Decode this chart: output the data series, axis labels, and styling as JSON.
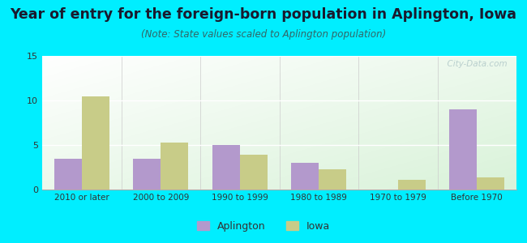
{
  "title": "Year of entry for the foreign-born population in Aplington, Iowa",
  "subtitle": "(Note: State values scaled to Aplington population)",
  "categories": [
    "2010 or later",
    "2000 to 2009",
    "1990 to 1999",
    "1980 to 1989",
    "1970 to 1979",
    "Before 1970"
  ],
  "aplington_values": [
    3.5,
    3.5,
    5.0,
    3.0,
    0.0,
    9.0
  ],
  "iowa_values": [
    10.5,
    5.3,
    3.9,
    2.3,
    1.1,
    1.4
  ],
  "aplington_color": "#b399cc",
  "iowa_color": "#c8cc88",
  "background_outer": "#00eeff",
  "ylim": [
    0,
    15
  ],
  "yticks": [
    0,
    5,
    10,
    15
  ],
  "bar_width": 0.35,
  "title_fontsize": 12.5,
  "subtitle_fontsize": 8.5,
  "legend_labels": [
    "Aplington",
    "Iowa"
  ],
  "watermark": "  City-Data.com"
}
